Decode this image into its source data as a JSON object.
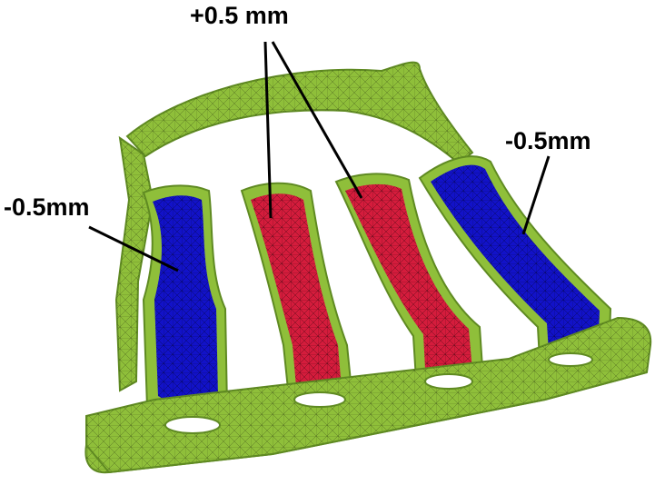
{
  "figure": {
    "labels": {
      "top": "+0.5 mm",
      "left": "-0.5mm",
      "right": "-0.5mm"
    }
  },
  "colors": {
    "background": "#ffffff",
    "body": "#8fbf3a",
    "body_dark": "#5f8a22",
    "mesh": "#2c3b12",
    "inner_plus": "#d41c3c",
    "inner_minus": "#1212c8",
    "hole": "#ffffff",
    "label_text": "#000000"
  },
  "legend_mapping": {
    "outer_runners_deviation": "-0.5mm",
    "inner_runners_deviation": "+0.5 mm"
  }
}
